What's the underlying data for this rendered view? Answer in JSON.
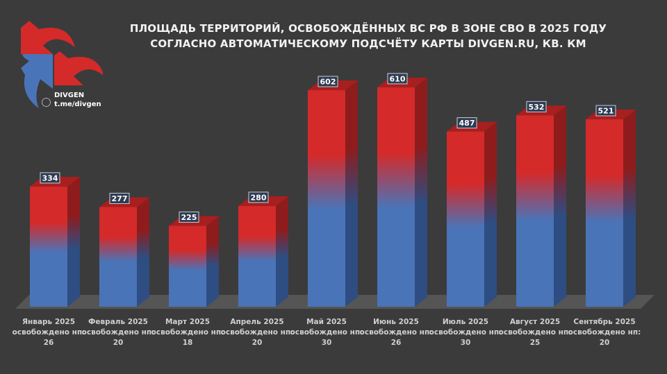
{
  "chart_data": {
    "type": "bar",
    "title": "ПЛОЩАДЬ ТЕРРИТОРИЙ, ОСВОБОЖДЁННЫХ ВС РФ В ЗОНЕ СВО В 2025 ГОДУ",
    "subtitle": "СОГЛАСНО АВТОМАТИЧЕСКОМУ ПОДСЧЁТУ КАРТЫ DIVGEN.RU, КВ. КМ",
    "categories": [
      "Январь 2025",
      "Февраль 2025",
      "Март 2025",
      "Апрель 2025",
      "Май 2025",
      "Июнь 2025",
      "Июль 2025",
      "Август 2025",
      "Сентябрь 2025"
    ],
    "category_notes": [
      "освобождено нп: 26",
      "освобождено нп: 20",
      "освобождено нп:  18",
      "освобождено нп: 20",
      "освобождено нп: 30",
      "освобождено нп: 26",
      "освобождено нп: 30",
      "освобождено нп: 25",
      "освобождено нп: 20"
    ],
    "values": [
      334,
      277,
      225,
      280,
      602,
      610,
      487,
      532,
      521
    ],
    "data_labels": [
      "334",
      "277",
      "225",
      "280",
      "602",
      "610",
      "487",
      "532",
      "521"
    ],
    "ylim": [
      0,
      610
    ],
    "grid": false,
    "style": "3d bars, red-to-blue gradient",
    "colors": {
      "red": "#d42a2a",
      "blue": "#4a74b8",
      "background": "#3b3b3b"
    }
  },
  "branding": {
    "name": "DIVGEN",
    "link": "t.me/divgen",
    "icon": "telegram-icon"
  }
}
